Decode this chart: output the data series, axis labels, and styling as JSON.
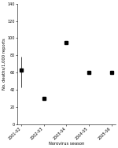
{
  "seasons": [
    "2001-02",
    "2002-03",
    "2003-04",
    "2004-05",
    "2005-06"
  ],
  "values": [
    63,
    30,
    95,
    60,
    60
  ],
  "yerr_low": 20,
  "yerr_high": 15,
  "ylabel": "No. deaths/1,000 reports",
  "xlabel": "Norovirus season",
  "ylim": [
    0,
    140
  ],
  "yticks": [
    0,
    20,
    40,
    60,
    80,
    100,
    120,
    140
  ],
  "marker": "s",
  "marker_size": 2.5,
  "marker_color": "black",
  "error_bar_color": "black",
  "background_color": "white",
  "fig_width": 1.5,
  "fig_height": 1.88,
  "dpi": 100,
  "tick_fontsize": 3.5,
  "label_fontsize": 3.8
}
